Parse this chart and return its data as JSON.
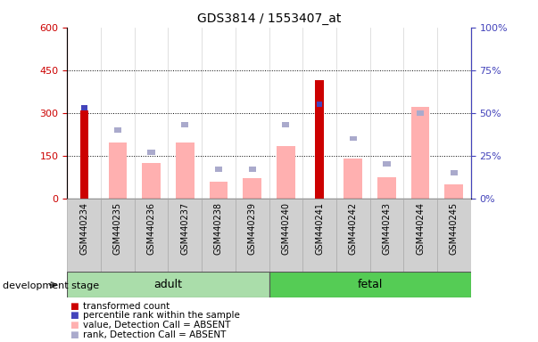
{
  "title": "GDS3814 / 1553407_at",
  "samples": [
    "GSM440234",
    "GSM440235",
    "GSM440236",
    "GSM440237",
    "GSM440238",
    "GSM440239",
    "GSM440240",
    "GSM440241",
    "GSM440242",
    "GSM440243",
    "GSM440244",
    "GSM440245"
  ],
  "groups": [
    "adult",
    "adult",
    "adult",
    "adult",
    "adult",
    "adult",
    "fetal",
    "fetal",
    "fetal",
    "fetal",
    "fetal",
    "fetal"
  ],
  "red_values": [
    310,
    0,
    0,
    0,
    0,
    0,
    0,
    415,
    0,
    0,
    0,
    0
  ],
  "blue_pct": [
    53,
    0,
    0,
    0,
    0,
    0,
    0,
    55,
    0,
    0,
    0,
    0
  ],
  "pink_values": [
    0,
    195,
    125,
    195,
    60,
    72,
    185,
    0,
    140,
    75,
    320,
    50
  ],
  "lavender_pct": [
    0,
    40,
    27,
    43,
    17,
    17,
    43,
    0,
    35,
    20,
    50,
    15
  ],
  "left_ylim": [
    0,
    600
  ],
  "right_ylim": [
    0,
    100
  ],
  "left_yticks": [
    0,
    150,
    300,
    450,
    600
  ],
  "right_yticks": [
    0,
    25,
    50,
    75,
    100
  ],
  "right_yticklabels": [
    "0%",
    "25%",
    "50%",
    "75%",
    "100%"
  ],
  "bar_width": 0.55,
  "red_bar_width": 0.25,
  "red_color": "#cc0000",
  "blue_color": "#4444bb",
  "pink_color": "#ffb0b0",
  "lavender_color": "#aaaacc",
  "adult_color": "#aaddaa",
  "fetal_color": "#55cc55",
  "sample_box_color": "#d0d0d0",
  "legend_items": [
    {
      "label": "transformed count",
      "color": "#cc0000"
    },
    {
      "label": "percentile rank within the sample",
      "color": "#4444bb"
    },
    {
      "label": "value, Detection Call = ABSENT",
      "color": "#ffb0b0"
    },
    {
      "label": "rank, Detection Call = ABSENT",
      "color": "#aaaacc"
    }
  ],
  "group_label": "development stage",
  "fig_width": 6.03,
  "fig_height": 3.84,
  "dpi": 100
}
